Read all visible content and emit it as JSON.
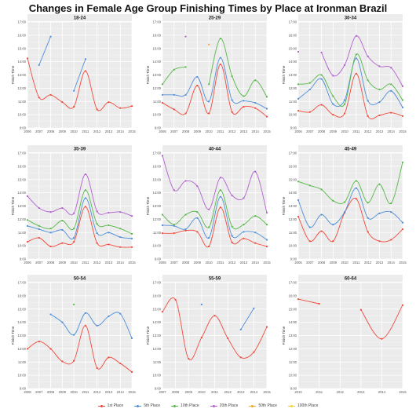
{
  "title": "Changes in Female Age Group Finishing Times by Place at Ironman Brazil",
  "legend": [
    {
      "label": "1st Place",
      "color": "#f14a3c"
    },
    {
      "label": "5th Place",
      "color": "#4f8fd9"
    },
    {
      "label": "10th Place",
      "color": "#56b848"
    },
    {
      "label": "20th Place",
      "color": "#b35fd0"
    },
    {
      "label": "50th Place",
      "color": "#f5a623"
    },
    {
      "label": "100th Place",
      "color": "#f0d33a"
    }
  ],
  "chart_data": [
    {
      "type": "line",
      "title": "18-24",
      "xlabel": "",
      "ylabel": "Finish Time",
      "x": [
        2006,
        2007,
        2008,
        2009,
        2010,
        2011,
        2012,
        2013,
        2014,
        2015
      ],
      "ylim": [
        9,
        17
      ],
      "yticks": [
        "9:00",
        "10:00",
        "11:00",
        "12:00",
        "13:00",
        "14:00",
        "15:00",
        "16:00",
        "17:00"
      ],
      "grid": true,
      "series": [
        {
          "name": "1st Place",
          "color": "#f14a3c",
          "values": [
            14.25,
            11.3,
            11.5,
            10.95,
            10.6,
            13.3,
            10.4,
            10.95,
            10.5,
            10.65
          ]
        },
        {
          "name": "5th Place",
          "color": "#4f8fd9",
          "values": [
            null,
            13.75,
            15.9,
            null,
            11.8,
            14.2,
            null,
            null,
            null,
            null
          ]
        }
      ]
    },
    {
      "type": "line",
      "title": "25-29",
      "xlabel": "",
      "ylabel": "Finish Time",
      "x": [
        2006,
        2007,
        2008,
        2009,
        2010,
        2011,
        2012,
        2013,
        2014,
        2015
      ],
      "ylim": [
        9,
        17
      ],
      "yticks": [
        "9:00",
        "10:00",
        "11:00",
        "12:00",
        "13:00",
        "14:00",
        "15:00",
        "16:00",
        "17:00"
      ],
      "grid": true,
      "series": [
        {
          "name": "1st Place",
          "color": "#f14a3c",
          "values": [
            10.9,
            10.4,
            10.1,
            12.2,
            10.1,
            13.8,
            10.2,
            10.6,
            10.5,
            9.85
          ]
        },
        {
          "name": "5th Place",
          "color": "#4f8fd9",
          "values": [
            11.5,
            11.5,
            11.5,
            12.85,
            11.0,
            14.3,
            11.1,
            11.05,
            10.9,
            10.45
          ]
        },
        {
          "name": "10th Place",
          "color": "#56b848",
          "values": [
            12.3,
            13.4,
            13.6,
            null,
            12.3,
            15.75,
            12.9,
            11.4,
            12.6,
            11.35
          ]
        },
        {
          "name": "20th Place",
          "color": "#b35fd0",
          "values": [
            null,
            null,
            15.9,
            null,
            null,
            null,
            null,
            null,
            null,
            null
          ]
        },
        {
          "name": "50th Place",
          "color": "#f5a623",
          "values": [
            null,
            null,
            null,
            null,
            15.3,
            null,
            null,
            null,
            null,
            null
          ]
        },
        {
          "name": "100th Place",
          "color": "#f0d33a",
          "values": [
            null,
            null,
            null,
            null,
            null,
            null,
            null,
            null,
            null,
            null
          ]
        }
      ]
    },
    {
      "type": "line",
      "title": "30-34",
      "xlabel": "",
      "ylabel": "Finish Time",
      "x": [
        2006,
        2007,
        2008,
        2009,
        2010,
        2011,
        2012,
        2013,
        2014,
        2015
      ],
      "ylim": [
        9,
        17
      ],
      "yticks": [
        "9:00",
        "10:00",
        "11:00",
        "12:00",
        "13:00",
        "14:00",
        "15:00",
        "16:00",
        "17:00"
      ],
      "grid": true,
      "series": [
        {
          "name": "1st Place",
          "color": "#f14a3c",
          "values": [
            10.3,
            10.2,
            10.75,
            10.0,
            10.1,
            13.1,
            9.9,
            9.95,
            10.15,
            9.9
          ]
        },
        {
          "name": "5th Place",
          "color": "#4f8fd9",
          "values": [
            11.2,
            11.9,
            12.7,
            10.8,
            11.1,
            14.25,
            11.05,
            10.95,
            11.8,
            10.55
          ]
        },
        {
          "name": "10th Place",
          "color": "#56b848",
          "values": [
            12.3,
            12.4,
            13.0,
            11.4,
            10.8,
            14.55,
            12.6,
            11.9,
            12.3,
            11.1
          ]
        },
        {
          "name": "20th Place",
          "color": "#b35fd0",
          "values": [
            14.75,
            null,
            14.7,
            12.95,
            13.75,
            15.95,
            14.4,
            13.65,
            13.55,
            12.15
          ]
        }
      ]
    },
    {
      "type": "line",
      "title": "35-39",
      "xlabel": "",
      "ylabel": "Finish Time",
      "x": [
        2006,
        2007,
        2008,
        2009,
        2010,
        2011,
        2012,
        2013,
        2014,
        2015
      ],
      "ylim": [
        9,
        17
      ],
      "yticks": [
        "9:00",
        "10:00",
        "11:00",
        "12:00",
        "13:00",
        "14:00",
        "15:00",
        "16:00",
        "17:00"
      ],
      "grid": true,
      "series": [
        {
          "name": "1st Place",
          "color": "#f14a3c",
          "values": [
            10.3,
            10.6,
            9.95,
            10.2,
            10.3,
            12.95,
            10.2,
            10.1,
            9.9,
            9.9
          ]
        },
        {
          "name": "5th Place",
          "color": "#4f8fd9",
          "values": [
            11.5,
            11.25,
            11.0,
            11.2,
            10.6,
            13.6,
            10.95,
            11.0,
            10.65,
            10.55
          ]
        },
        {
          "name": "10th Place",
          "color": "#56b848",
          "values": [
            11.95,
            11.5,
            11.3,
            11.9,
            11.3,
            14.2,
            11.65,
            11.55,
            11.3,
            10.9
          ]
        },
        {
          "name": "20th Place",
          "color": "#b35fd0",
          "values": [
            13.75,
            12.85,
            12.55,
            12.85,
            12.45,
            15.4,
            12.6,
            12.5,
            12.55,
            12.25
          ]
        }
      ]
    },
    {
      "type": "line",
      "title": "40-44",
      "xlabel": "",
      "ylabel": "Finish Time",
      "x": [
        2006,
        2007,
        2008,
        2009,
        2010,
        2011,
        2012,
        2013,
        2014,
        2015
      ],
      "ylim": [
        9,
        17
      ],
      "yticks": [
        "9:00",
        "10:00",
        "11:00",
        "12:00",
        "13:00",
        "14:00",
        "15:00",
        "16:00",
        "17:00"
      ],
      "grid": true,
      "series": [
        {
          "name": "1st Place",
          "color": "#f14a3c",
          "values": [
            10.95,
            10.95,
            11.15,
            11.05,
            9.95,
            12.9,
            10.25,
            10.55,
            10.2,
            9.95
          ]
        },
        {
          "name": "5th Place",
          "color": "#4f8fd9",
          "values": [
            11.55,
            11.5,
            11.25,
            12.1,
            10.6,
            13.7,
            10.75,
            11.05,
            11.0,
            10.45
          ]
        },
        {
          "name": "10th Place",
          "color": "#56b848",
          "values": [
            12.35,
            11.6,
            12.35,
            12.55,
            11.4,
            14.2,
            11.45,
            11.6,
            12.25,
            11.6
          ]
        },
        {
          "name": "20th Place",
          "color": "#b35fd0",
          "values": [
            16.8,
            14.2,
            14.9,
            14.5,
            12.75,
            15.15,
            13.8,
            13.6,
            15.6,
            12.5
          ]
        }
      ]
    },
    {
      "type": "line",
      "title": "45-49",
      "xlabel": "",
      "ylabel": "Finish Time",
      "x": [
        2006,
        2007,
        2008,
        2009,
        2010,
        2011,
        2012,
        2013,
        2014,
        2015
      ],
      "ylim": [
        9,
        17
      ],
      "yticks": [
        "9:00",
        "10:00",
        "11:00",
        "12:00",
        "13:00",
        "14:00",
        "15:00",
        "16:00",
        "17:00"
      ],
      "grid": true,
      "series": [
        {
          "name": "1st Place",
          "color": "#f14a3c",
          "values": [
            12.2,
            10.35,
            11.1,
            10.35,
            12.5,
            13.55,
            11.05,
            10.35,
            10.45,
            11.25
          ]
        },
        {
          "name": "5th Place",
          "color": "#4f8fd9",
          "values": [
            13.45,
            11.4,
            12.35,
            11.6,
            12.55,
            14.35,
            12.1,
            12.45,
            12.55,
            11.75
          ]
        },
        {
          "name": "10th Place",
          "color": "#56b848",
          "values": [
            14.85,
            14.55,
            14.25,
            13.4,
            13.3,
            14.9,
            13.25,
            14.65,
            13.2,
            16.3
          ]
        }
      ]
    },
    {
      "type": "line",
      "title": "50-54",
      "xlabel": "",
      "ylabel": "Finish Time",
      "x": [
        2006,
        2007,
        2008,
        2009,
        2010,
        2011,
        2012,
        2013,
        2014,
        2015
      ],
      "ylim": [
        9,
        17
      ],
      "yticks": [
        "9:00",
        "10:00",
        "11:00",
        "12:00",
        "13:00",
        "14:00",
        "15:00",
        "16:00",
        "17:00"
      ],
      "grid": true,
      "series": [
        {
          "name": "1st Place",
          "color": "#f14a3c",
          "values": [
            12.0,
            12.55,
            12.0,
            11.05,
            11.1,
            13.75,
            10.55,
            11.35,
            10.9,
            10.25
          ]
        },
        {
          "name": "5th Place",
          "color": "#4f8fd9",
          "values": [
            null,
            null,
            14.6,
            14.0,
            13.05,
            14.7,
            13.75,
            14.45,
            14.65,
            12.8
          ]
        },
        {
          "name": "10th Place",
          "color": "#56b848",
          "values": [
            null,
            null,
            null,
            null,
            15.35,
            null,
            null,
            null,
            null,
            null
          ]
        }
      ]
    },
    {
      "type": "line",
      "title": "55-59",
      "xlabel": "",
      "ylabel": "Finish Time",
      "x": [
        2007,
        2008,
        2009,
        2010,
        2011,
        2012,
        2013,
        2014,
        2015
      ],
      "ylim": [
        9,
        17
      ],
      "yticks": [
        "9:00",
        "10:00",
        "11:00",
        "12:00",
        "13:00",
        "14:00",
        "15:00",
        "16:00",
        "17:00"
      ],
      "grid": true,
      "series": [
        {
          "name": "1st Place",
          "color": "#f14a3c",
          "values": [
            14.8,
            15.7,
            11.25,
            12.85,
            14.5,
            12.8,
            11.35,
            11.75,
            13.65
          ]
        },
        {
          "name": "5th Place",
          "color": "#4f8fd9",
          "values": [
            null,
            null,
            null,
            15.35,
            null,
            null,
            13.45,
            15.05,
            null
          ]
        }
      ]
    },
    {
      "type": "line",
      "title": "60-64",
      "xlabel": "",
      "ylabel": "Finish Time",
      "x": [
        2010,
        2011,
        2012,
        2013,
        2014,
        2015
      ],
      "ylim": [
        9,
        17
      ],
      "yticks": [
        "9:00",
        "10:00",
        "11:00",
        "12:00",
        "13:00",
        "14:00",
        "15:00",
        "16:00",
        "17:00"
      ],
      "grid": true,
      "series": [
        {
          "name": "1st Place",
          "color": "#f14a3c",
          "values": [
            15.75,
            15.4,
            null,
            14.95,
            12.75,
            15.3
          ]
        }
      ]
    }
  ]
}
